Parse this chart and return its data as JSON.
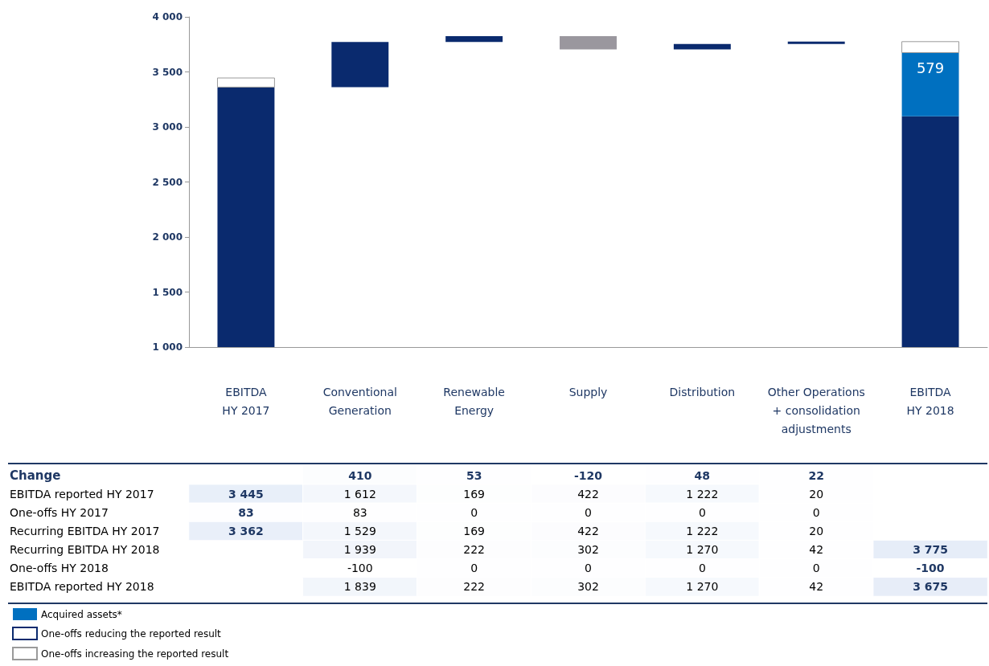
{
  "chart_data": [
    {
      "type": "bar",
      "categories": [
        "EBITDA\nHY 2017",
        "Conventional\nGeneration",
        "Renewable\nEnergy",
        "Supply",
        "Distribution",
        "Other Operations\n+ consolidation\nadjustments",
        "EBITDA\nHY 2018"
      ],
      "ylim": [
        1000,
        4000
      ],
      "yticks": [
        {
          "value": 1000,
          "label": "1 000"
        },
        {
          "value": 1500,
          "label": "1 500"
        },
        {
          "value": 2000,
          "label": "2 000"
        },
        {
          "value": 2500,
          "label": "2 500"
        },
        {
          "value": 3000,
          "label": "3 000"
        },
        {
          "value": 3500,
          "label": "3 500"
        },
        {
          "value": 4000,
          "label": "4 000"
        }
      ],
      "grid": false,
      "legend": "bottom left",
      "series": [
        {
          "color": "#0a2a6e",
          "values": [
            2362,
            410,
            53,
            null,
            48,
            22,
            2096
          ],
          "base": [
            1000,
            3362,
            3772,
            null,
            3705,
            3753,
            1000
          ]
        },
        {
          "color": "#9a979e",
          "values": [
            null,
            null,
            null,
            -120,
            null,
            null,
            null
          ],
          "base": [
            null,
            null,
            null,
            3825,
            null,
            null,
            null
          ]
        },
        {
          "name": "Acquired assets*",
          "color": "#0070c0",
          "values": [
            null,
            null,
            null,
            null,
            null,
            null,
            579
          ],
          "base": [
            null,
            null,
            null,
            null,
            null,
            null,
            3096
          ],
          "value_labels": [
            null,
            null,
            null,
            null,
            null,
            null,
            "579"
          ]
        },
        {
          "name": "One-offs reducing the reported result",
          "color": "#ffffff",
          "values": [
            null,
            null,
            null,
            null,
            null,
            null,
            null
          ],
          "base": [
            null,
            null,
            null,
            null,
            null,
            null,
            null
          ]
        },
        {
          "name": "One-offs increasing the reported result",
          "color": "#ffffff",
          "values": [
            83,
            null,
            null,
            null,
            null,
            null,
            100
          ],
          "base": [
            3362,
            null,
            null,
            null,
            null,
            null,
            3675
          ]
        }
      ]
    },
    {
      "type": "heatmap",
      "categories": [
        null,
        null,
        null,
        null,
        null,
        null,
        null
      ],
      "y_categories": [
        "Change",
        "EBITDA reported HY 2017",
        "One-offs HY 2017",
        "Recurring EBITDA HY 2017",
        "Recurring EBITDA HY 2018",
        "One-offs HY 2018",
        "EBITDA reported HY 2018"
      ],
      "cells": [
        [
          null,
          410,
          53,
          -120,
          48,
          22,
          null
        ],
        [
          3445,
          1612,
          169,
          422,
          1222,
          20,
          null
        ],
        [
          83,
          83,
          0,
          0,
          0,
          0,
          null
        ],
        [
          3362,
          1529,
          169,
          422,
          1222,
          20,
          null
        ],
        [
          null,
          1939,
          222,
          302,
          1270,
          42,
          3775
        ],
        [
          null,
          -100,
          0,
          0,
          0,
          0,
          -100
        ],
        [
          null,
          1839,
          222,
          302,
          1270,
          42,
          3675
        ]
      ],
      "cell_labels": [
        [
          null,
          "410",
          "53",
          "-120",
          "48",
          "22",
          null
        ],
        [
          "3 445",
          "1 612",
          "169",
          "422",
          "1 222",
          "20",
          null
        ],
        [
          "83",
          "83",
          "0",
          "0",
          "0",
          "0",
          null
        ],
        [
          "3 362",
          "1 529",
          "169",
          "422",
          "1 222",
          "20",
          null
        ],
        [
          null,
          "1 939",
          "222",
          "302",
          "1 270",
          "42",
          "3 775"
        ],
        [
          null,
          "-100",
          "0",
          "0",
          "0",
          "0",
          "-100"
        ],
        [
          null,
          "1 839",
          "222",
          "302",
          "1 270",
          "42",
          "3 675"
        ]
      ]
    }
  ]
}
